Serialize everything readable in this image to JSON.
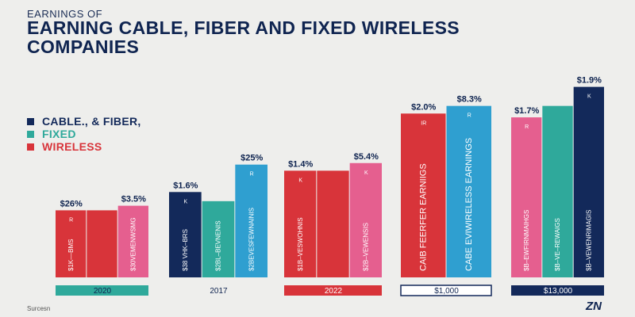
{
  "header": {
    "kicker": "EARNINGS OF",
    "title": "EARNING CABLE, FIBER AND FIXED WIRELESS COMPANIES"
  },
  "legend": [
    {
      "label": "CABLE., & FIBER,",
      "color": "#13295a"
    },
    {
      "label": "FIXED",
      "color": "#2fa99b"
    },
    {
      "label": "WIRELESS",
      "color": "#d8343a"
    }
  ],
  "footer": {
    "source": "Surcesn",
    "logo": "ZN"
  },
  "chart_data": {
    "type": "bar",
    "ylim": [
      0,
      260
    ],
    "groups": [
      {
        "label": "2020",
        "label_style": "teal",
        "bars": [
          {
            "value": 88,
            "color": "#d8343a",
            "top_label": "$26%",
            "marker": "R",
            "text": "$1K––BMS"
          },
          {
            "value": 88,
            "color": "#d8343a",
            "top_label": "",
            "marker": "",
            "text": ""
          },
          {
            "value": 94,
            "color": "#e55f8f",
            "top_label": "$3.5%",
            "marker": "",
            "text": "$30VEMENWSMG"
          }
        ]
      },
      {
        "label": "2017",
        "label_style": "plain",
        "bars": [
          {
            "value": 112,
            "color": "#13295a",
            "top_label": "$1.6%",
            "marker": "K",
            "text": "$38 VHK–BRS"
          },
          {
            "value": 100,
            "color": "#2fa99b",
            "top_label": "",
            "marker": "",
            "text": "$2BL–BEVNENIS"
          },
          {
            "value": 148,
            "color": "#2f9fd0",
            "top_label": "$25%",
            "marker": "R",
            "text": "$2BEVESFEWNAINIS"
          }
        ]
      },
      {
        "label": "2022",
        "label_style": "red",
        "bars": [
          {
            "value": 140,
            "color": "#d8343a",
            "top_label": "$1.4%",
            "marker": "K",
            "text": "$1B–VESWOHNIS"
          },
          {
            "value": 140,
            "color": "#d8343a",
            "top_label": "",
            "marker": "",
            "text": ""
          },
          {
            "value": 150,
            "color": "#e55f8f",
            "top_label": "$5.4%",
            "marker": "K",
            "text": "$2B–VEWENSIS"
          }
        ]
      },
      {
        "label": "$1,000",
        "label_style": "navy-outline",
        "bars": [
          {
            "value": 215,
            "color": "#d8343a",
            "top_label": "$2.0%",
            "marker": "IR",
            "text": "CAIB FEERFER EARNIIGS",
            "big": true
          },
          {
            "value": 225,
            "color": "#2f9fd0",
            "top_label": "$8.3%",
            "marker": "R",
            "text": "CABE EVIWIRELESS EARNINGS",
            "big": true
          }
        ]
      },
      {
        "label": "$13,000",
        "label_style": "navy",
        "bars": [
          {
            "value": 210,
            "color": "#e55f8f",
            "top_label": "$1.7%",
            "marker": "R",
            "text": "$B–EWFIRNMAIHGS"
          },
          {
            "value": 225,
            "color": "#2fa99b",
            "top_label": "",
            "marker": "",
            "text": "$B–VE–REWAIGS"
          },
          {
            "value": 250,
            "color": "#13295a",
            "top_label": "$1.9%",
            "marker": "K",
            "text": "$B–VEWENRIMAGIS"
          }
        ]
      }
    ]
  }
}
